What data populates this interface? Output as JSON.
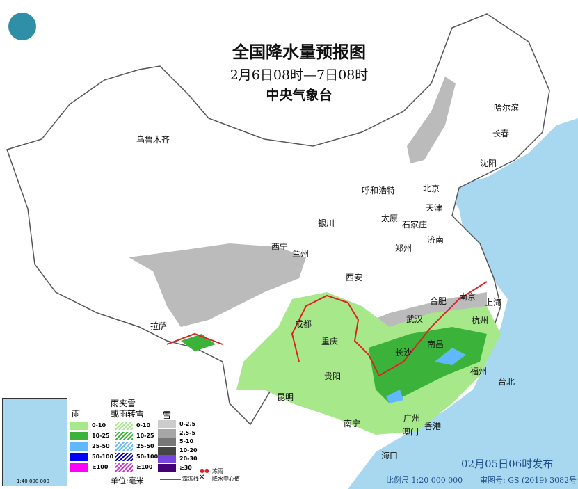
{
  "title": {
    "main": "全国降水量预报图",
    "period": "2月6日08时—7日08时",
    "agency": "中央气象台"
  },
  "cities": [
    {
      "name": "乌鲁木齐",
      "id": "urumqi"
    },
    {
      "name": "哈尔滨",
      "id": "harbin"
    },
    {
      "name": "长春",
      "id": "changchun"
    },
    {
      "name": "沈阳",
      "id": "shenyang"
    },
    {
      "name": "呼和浩特",
      "id": "hohhot"
    },
    {
      "name": "北京",
      "id": "beijing"
    },
    {
      "name": "天津",
      "id": "tianjin"
    },
    {
      "name": "太原",
      "id": "taiyuan"
    },
    {
      "name": "石家庄",
      "id": "shijiazhuang"
    },
    {
      "name": "银川",
      "id": "yinchuan"
    },
    {
      "name": "济南",
      "id": "jinan"
    },
    {
      "name": "西宁",
      "id": "xining"
    },
    {
      "name": "兰州",
      "id": "lanzhou"
    },
    {
      "name": "郑州",
      "id": "zhengzhou"
    },
    {
      "name": "西安",
      "id": "xian"
    },
    {
      "name": "合肥",
      "id": "hefei"
    },
    {
      "name": "南京",
      "id": "nanjing"
    },
    {
      "name": "上海",
      "id": "shanghai"
    },
    {
      "name": "武汉",
      "id": "wuhan"
    },
    {
      "name": "杭州",
      "id": "hangzhou"
    },
    {
      "name": "成都",
      "id": "chengdu"
    },
    {
      "name": "拉萨",
      "id": "lhasa"
    },
    {
      "name": "重庆",
      "id": "chongqing"
    },
    {
      "name": "长沙",
      "id": "changsha"
    },
    {
      "name": "南昌",
      "id": "nanchang"
    },
    {
      "name": "贵阳",
      "id": "guiyang"
    },
    {
      "name": "福州",
      "id": "fuzhou"
    },
    {
      "name": "台北",
      "id": "taipei"
    },
    {
      "name": "昆明",
      "id": "kunming"
    },
    {
      "name": "南宁",
      "id": "nanning"
    },
    {
      "name": "广州",
      "id": "guangzhou"
    },
    {
      "name": "香港",
      "id": "hongkong"
    },
    {
      "name": "澳门",
      "id": "macau"
    },
    {
      "name": "海口",
      "id": "haikou"
    }
  ],
  "legend": {
    "rain": {
      "title": "雨",
      "items": [
        {
          "label": "0-10",
          "color": "#a6e88a"
        },
        {
          "label": "10-25",
          "color": "#3bb33b"
        },
        {
          "label": "25-50",
          "color": "#62b8ff"
        },
        {
          "label": "50-100",
          "color": "#0000ff"
        },
        {
          "label": "≥100",
          "color": "#ff00ff"
        }
      ]
    },
    "sleet": {
      "title1": "雨夹雪",
      "title2": "或雨转雪",
      "items": [
        {
          "label": "0-10",
          "color": "#a6e88a"
        },
        {
          "label": "10-25",
          "color": "#3bb33b"
        },
        {
          "label": "25-50",
          "color": "#62b8ff"
        },
        {
          "label": "50-100",
          "color": "#0000aa"
        },
        {
          "label": "≥100",
          "color": "#cc33cc"
        }
      ]
    },
    "snow": {
      "title": "雪",
      "items": [
        {
          "label": "0-2.5",
          "color": "#cccccc"
        },
        {
          "label": "2.5-5",
          "color": "#a6a6a6"
        },
        {
          "label": "5-10",
          "color": "#777777"
        },
        {
          "label": "10-20",
          "color": "#444444"
        },
        {
          "label": "20-30",
          "color": "#7744dd"
        },
        {
          "label": "≥30",
          "color": "#440077"
        }
      ]
    },
    "unit": "单位:毫米",
    "freezing_rain": "冻雨",
    "freeze_line": "霜冻线",
    "center": "降水中心值"
  },
  "footer": {
    "issued": "02月05日06时发布",
    "scale": "比例尺 1:20 000 000",
    "map_no": "审图号: GS (2019) 3082号",
    "inset_scale": "1:40 000 000"
  },
  "colors": {
    "sea": "#a8d8ef",
    "land": "#ffffff",
    "border": "#555555"
  }
}
